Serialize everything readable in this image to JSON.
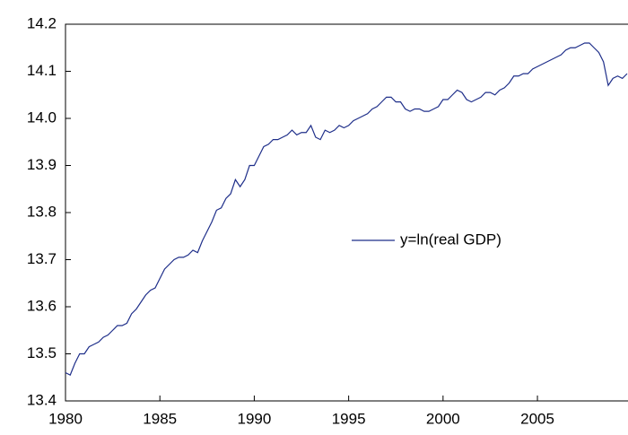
{
  "chart_data": {
    "type": "line",
    "x": [
      1980,
      1980.25,
      1980.5,
      1980.75,
      1981,
      1981.25,
      1981.5,
      1981.75,
      1982,
      1982.25,
      1982.5,
      1982.75,
      1983,
      1983.25,
      1983.5,
      1983.75,
      1984,
      1984.25,
      1984.5,
      1984.75,
      1985,
      1985.25,
      1985.5,
      1985.75,
      1986,
      1986.25,
      1986.5,
      1986.75,
      1987,
      1987.25,
      1987.5,
      1987.75,
      1988,
      1988.25,
      1988.5,
      1988.75,
      1989,
      1989.25,
      1989.5,
      1989.75,
      1990,
      1990.25,
      1990.5,
      1990.75,
      1991,
      1991.25,
      1991.5,
      1991.75,
      1992,
      1992.25,
      1992.5,
      1992.75,
      1993,
      1993.25,
      1993.5,
      1993.75,
      1994,
      1994.25,
      1994.5,
      1994.75,
      1995,
      1995.25,
      1995.5,
      1995.75,
      1996,
      1996.25,
      1996.5,
      1996.75,
      1997,
      1997.25,
      1997.5,
      1997.75,
      1998,
      1998.25,
      1998.5,
      1998.75,
      1999,
      1999.25,
      1999.5,
      1999.75,
      2000,
      2000.25,
      2000.5,
      2000.75,
      2001,
      2001.25,
      2001.5,
      2001.75,
      2002,
      2002.25,
      2002.5,
      2002.75,
      2003,
      2003.25,
      2003.5,
      2003.75,
      2004,
      2004.25,
      2004.5,
      2004.75,
      2005,
      2005.25,
      2005.5,
      2005.75,
      2006,
      2006.25,
      2006.5,
      2006.75,
      2007,
      2007.25,
      2007.5,
      2007.75,
      2008,
      2008.25,
      2008.5,
      2008.75,
      2009,
      2009.25,
      2009.5,
      2009.75
    ],
    "series": [
      {
        "name": "y=ln(real GDP)",
        "color": "#1f2f8a",
        "values": [
          13.46,
          13.455,
          13.48,
          13.5,
          13.5,
          13.515,
          13.52,
          13.525,
          13.535,
          13.54,
          13.55,
          13.56,
          13.56,
          13.565,
          13.585,
          13.595,
          13.61,
          13.625,
          13.635,
          13.64,
          13.66,
          13.68,
          13.69,
          13.7,
          13.705,
          13.705,
          13.71,
          13.72,
          13.715,
          13.74,
          13.76,
          13.78,
          13.805,
          13.81,
          13.83,
          13.84,
          13.87,
          13.855,
          13.87,
          13.9,
          13.9,
          13.92,
          13.94,
          13.945,
          13.955,
          13.955,
          13.96,
          13.965,
          13.975,
          13.965,
          13.97,
          13.97,
          13.985,
          13.96,
          13.955,
          13.975,
          13.97,
          13.975,
          13.985,
          13.98,
          13.985,
          13.995,
          14.0,
          14.005,
          14.01,
          14.02,
          14.025,
          14.035,
          14.045,
          14.045,
          14.035,
          14.035,
          14.02,
          14.015,
          14.02,
          14.02,
          14.015,
          14.015,
          14.02,
          14.025,
          14.04,
          14.04,
          14.05,
          14.06,
          14.055,
          14.04,
          14.035,
          14.04,
          14.045,
          14.055,
          14.055,
          14.05,
          14.06,
          14.065,
          14.075,
          14.09,
          14.09,
          14.095,
          14.095,
          14.105,
          14.11,
          14.115,
          14.12,
          14.125,
          14.13,
          14.135,
          14.145,
          14.15,
          14.15,
          14.155,
          14.16,
          14.16,
          14.15,
          14.14,
          14.12,
          14.07,
          14.085,
          14.09,
          14.085,
          14.095
        ]
      }
    ],
    "xlim": [
      1980,
      2009.75
    ],
    "xticks": [
      1980,
      1985,
      1990,
      1995,
      2000,
      2005
    ],
    "ylim": [
      13.4,
      14.2
    ],
    "yticks": [
      13.4,
      13.5,
      13.6,
      13.7,
      13.8,
      13.9,
      {
        "value": 14,
        "label": "14.0"
      },
      14.1,
      14.2
    ],
    "grid": false
  }
}
